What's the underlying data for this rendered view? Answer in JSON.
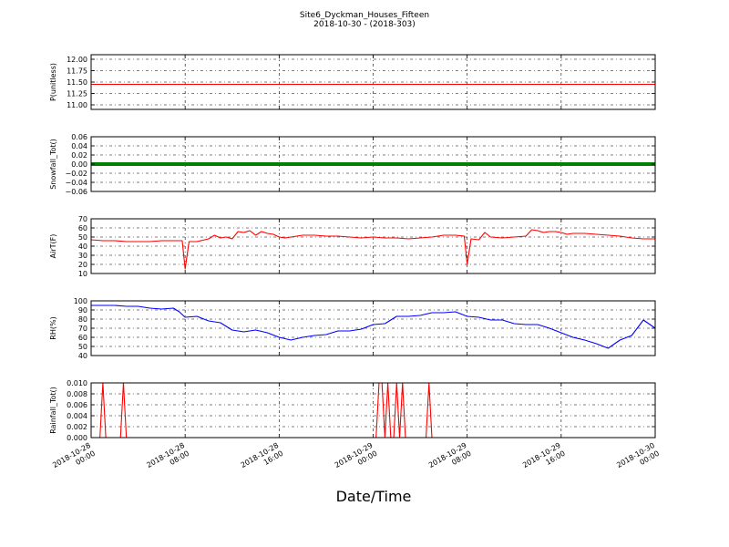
{
  "chart_data": {
    "type": "line",
    "title": "Site6_Dyckman_Houses_Fifteen",
    "subtitle": "2018-10-30 - (2018-303)",
    "xlabel": "Date/Time",
    "x_range": [
      "2018-10-28 00:00",
      "2018-10-30 00:00"
    ],
    "x_ticks": [
      {
        "value": "2018-10-28 00:00",
        "date": "2018-10-28",
        "time": "00:00"
      },
      {
        "value": "2018-10-28 08:00",
        "date": "2018-10-28",
        "time": "08:00"
      },
      {
        "value": "2018-10-28 16:00",
        "date": "2018-10-28",
        "time": "16:00"
      },
      {
        "value": "2018-10-29 00:00",
        "date": "2018-10-29",
        "time": "00:00"
      },
      {
        "value": "2018-10-29 08:00",
        "date": "2018-10-29",
        "time": "08:00"
      },
      {
        "value": "2018-10-29 16:00",
        "date": "2018-10-29",
        "time": "16:00"
      },
      {
        "value": "2018-10-30 00:00",
        "date": "2018-10-30",
        "time": "00:00"
      }
    ],
    "grid": true,
    "panels": [
      {
        "ylabel": "P(unitless)",
        "ylim": [
          10.9,
          12.1
        ],
        "yticks": [
          11.0,
          11.25,
          11.5,
          11.75,
          12.0
        ],
        "tick_labels": [
          "11.00",
          "11.25",
          "11.50",
          "11.75",
          "12.00"
        ],
        "color": "#ff0000",
        "style": "line",
        "x": [
          "2018-10-28 00:00",
          "2018-10-30 00:00"
        ],
        "y": [
          11.45,
          11.45
        ]
      },
      {
        "ylabel": "Snowfall_Tot()",
        "ylim": [
          -0.06,
          0.06
        ],
        "yticks": [
          -0.06,
          -0.04,
          -0.02,
          0.0,
          0.02,
          0.04,
          0.06
        ],
        "tick_labels": [
          "−0.06",
          "−0.04",
          "−0.02",
          "0.00",
          "0.02",
          "0.04",
          "0.06"
        ],
        "color": "#008000",
        "style": "thick",
        "x": [
          "2018-10-28 00:00",
          "2018-10-30 00:00"
        ],
        "y": [
          0,
          0
        ]
      },
      {
        "ylabel": "AirT(F)",
        "ylim": [
          10,
          70
        ],
        "yticks": [
          10,
          20,
          30,
          40,
          50,
          60,
          70
        ],
        "tick_labels": [
          "10",
          "20",
          "30",
          "40",
          "50",
          "60",
          "70"
        ],
        "color": "#ff0000",
        "style": "line",
        "x": [
          "2018-10-28 00:00",
          "2018-10-28 01:00",
          "2018-10-28 02:00",
          "2018-10-28 03:00",
          "2018-10-28 04:00",
          "2018-10-28 05:00",
          "2018-10-28 06:00",
          "2018-10-28 07:00",
          "2018-10-28 07:45",
          "2018-10-28 08:00",
          "2018-10-28 08:20",
          "2018-10-28 09:00",
          "2018-10-28 10:00",
          "2018-10-28 10:30",
          "2018-10-28 11:00",
          "2018-10-28 11:30",
          "2018-10-28 12:00",
          "2018-10-28 12:30",
          "2018-10-28 13:00",
          "2018-10-28 13:30",
          "2018-10-28 14:00",
          "2018-10-28 14:30",
          "2018-10-28 15:00",
          "2018-10-28 15:30",
          "2018-10-28 16:00",
          "2018-10-28 16:30",
          "2018-10-28 17:00",
          "2018-10-28 17:30",
          "2018-10-28 18:00",
          "2018-10-28 19:00",
          "2018-10-28 20:00",
          "2018-10-28 21:00",
          "2018-10-28 22:00",
          "2018-10-28 23:00",
          "2018-10-29 00:00",
          "2018-10-29 01:00",
          "2018-10-29 02:00",
          "2018-10-29 03:00",
          "2018-10-29 04:00",
          "2018-10-29 05:00",
          "2018-10-29 06:00",
          "2018-10-29 07:00",
          "2018-10-29 07:45",
          "2018-10-29 08:00",
          "2018-10-29 08:20",
          "2018-10-29 09:00",
          "2018-10-29 09:30",
          "2018-10-29 10:00",
          "2018-10-29 11:00",
          "2018-10-29 12:00",
          "2018-10-29 13:00",
          "2018-10-29 13:30",
          "2018-10-29 14:00",
          "2018-10-29 14:30",
          "2018-10-29 15:00",
          "2018-10-29 15:30",
          "2018-10-29 16:00",
          "2018-10-29 16:30",
          "2018-10-29 17:00",
          "2018-10-29 18:00",
          "2018-10-29 19:00",
          "2018-10-29 20:00",
          "2018-10-29 21:00",
          "2018-10-29 22:00",
          "2018-10-29 23:00",
          "2018-10-30 00:00"
        ],
        "y": [
          47,
          46,
          46,
          45,
          45,
          45,
          46,
          46,
          46,
          15,
          45,
          45,
          48,
          52,
          49,
          50,
          48,
          56,
          55,
          57,
          52,
          56,
          54,
          53,
          50,
          49,
          50,
          51,
          52,
          52,
          51,
          51,
          50,
          49,
          50,
          49,
          49,
          48,
          49,
          50,
          52,
          52,
          51,
          20,
          48,
          47,
          55,
          50,
          49,
          50,
          51,
          58,
          57,
          55,
          56,
          56,
          55,
          53,
          54,
          54,
          53,
          52,
          51,
          49,
          48,
          48
        ]
      },
      {
        "ylabel": "RH(%)",
        "ylim": [
          40,
          100
        ],
        "yticks": [
          40,
          50,
          60,
          70,
          80,
          90,
          100
        ],
        "tick_labels": [
          "40",
          "50",
          "60",
          "70",
          "80",
          "90",
          "100"
        ],
        "color": "#0000ff",
        "style": "line",
        "x": [
          "2018-10-28 00:00",
          "2018-10-28 01:00",
          "2018-10-28 02:00",
          "2018-10-28 03:00",
          "2018-10-28 04:00",
          "2018-10-28 05:00",
          "2018-10-28 06:00",
          "2018-10-28 07:00",
          "2018-10-28 07:30",
          "2018-10-28 08:00",
          "2018-10-28 09:00",
          "2018-10-28 10:00",
          "2018-10-28 11:00",
          "2018-10-28 12:00",
          "2018-10-28 13:00",
          "2018-10-28 14:00",
          "2018-10-28 15:00",
          "2018-10-28 16:00",
          "2018-10-28 17:00",
          "2018-10-28 18:00",
          "2018-10-28 19:00",
          "2018-10-28 20:00",
          "2018-10-28 21:00",
          "2018-10-28 22:00",
          "2018-10-28 23:00",
          "2018-10-29 00:00",
          "2018-10-29 01:00",
          "2018-10-29 02:00",
          "2018-10-29 03:00",
          "2018-10-29 04:00",
          "2018-10-29 05:00",
          "2018-10-29 06:00",
          "2018-10-29 07:00",
          "2018-10-29 08:00",
          "2018-10-29 09:00",
          "2018-10-29 10:00",
          "2018-10-29 11:00",
          "2018-10-29 12:00",
          "2018-10-29 13:00",
          "2018-10-29 14:00",
          "2018-10-29 15:00",
          "2018-10-29 16:00",
          "2018-10-29 17:00",
          "2018-10-29 18:00",
          "2018-10-29 19:00",
          "2018-10-29 20:00",
          "2018-10-29 21:00",
          "2018-10-29 22:00",
          "2018-10-29 23:00",
          "2018-10-30 00:00"
        ],
        "y": [
          95,
          95,
          95,
          94,
          94,
          92,
          91,
          92,
          88,
          82,
          83,
          78,
          76,
          68,
          66,
          68,
          65,
          60,
          57,
          60,
          62,
          63,
          67,
          67,
          69,
          74,
          75,
          83,
          83,
          84,
          87,
          87,
          88,
          83,
          82,
          79,
          79,
          75,
          74,
          74,
          70,
          65,
          60,
          57,
          53,
          48,
          57,
          62,
          79,
          70
        ]
      },
      {
        "ylabel": "Rainfall_Tot()",
        "ylim": [
          0,
          0.01
        ],
        "yticks": [
          0.0,
          0.002,
          0.004,
          0.006,
          0.008,
          0.01
        ],
        "tick_labels": [
          "0.000",
          "0.002",
          "0.004",
          "0.006",
          "0.008",
          "0.010"
        ],
        "color": "#ff0000",
        "style": "line",
        "x": [
          "2018-10-28 00:00",
          "2018-10-28 00:45",
          "2018-10-28 01:00",
          "2018-10-28 01:15",
          "2018-10-28 02:30",
          "2018-10-28 02:45",
          "2018-10-28 03:00",
          "2018-10-29 00:15",
          "2018-10-29 00:30",
          "2018-10-29 00:45",
          "2018-10-29 01:00",
          "2018-10-29 01:15",
          "2018-10-29 01:30",
          "2018-10-29 01:45",
          "2018-10-29 02:00",
          "2018-10-29 02:15",
          "2018-10-29 02:30",
          "2018-10-29 02:45",
          "2018-10-29 03:00",
          "2018-10-29 04:30",
          "2018-10-29 04:45",
          "2018-10-29 05:00",
          "2018-10-30 00:00"
        ],
        "y": [
          0,
          0,
          0.01,
          0,
          0,
          0.01,
          0,
          0,
          0.01,
          0.01,
          0,
          0.01,
          0,
          0,
          0.01,
          0,
          0.01,
          0,
          0,
          0,
          0.01,
          0,
          0
        ]
      }
    ]
  }
}
